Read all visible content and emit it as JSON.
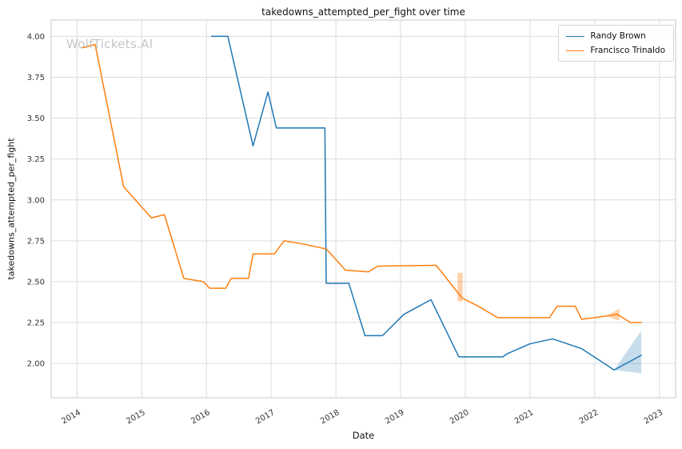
{
  "watermark": {
    "text": "WolfTickets.AI"
  },
  "chart_data": {
    "type": "line",
    "title": "takedowns_attempted_per_fight over time",
    "xlabel": "Date",
    "ylabel": "takedowns_attempted_per_fight",
    "xlim": [
      2013.6,
      2023.25
    ],
    "ylim": [
      1.79,
      4.1
    ],
    "xticks": [
      2014,
      2015,
      2016,
      2017,
      2018,
      2019,
      2020,
      2021,
      2022,
      2023
    ],
    "yticks": [
      2.0,
      2.25,
      2.5,
      2.75,
      3.0,
      3.25,
      3.5,
      3.75,
      4.0
    ],
    "grid": true,
    "grid_color": "#dcdcdc",
    "spine_color": "#c9c9c9",
    "tick_color": "#333333",
    "legend_position": "upper right",
    "series": [
      {
        "name": "Randy Brown",
        "color": "#1f77b4",
        "points": [
          [
            2016.08,
            4.0
          ],
          [
            2016.33,
            4.0
          ],
          [
            2016.72,
            3.33
          ],
          [
            2016.95,
            3.66
          ],
          [
            2017.08,
            3.44
          ],
          [
            2017.83,
            3.44
          ],
          [
            2017.85,
            2.49
          ],
          [
            2018.2,
            2.49
          ],
          [
            2018.45,
            2.17
          ],
          [
            2018.72,
            2.17
          ],
          [
            2019.05,
            2.3
          ],
          [
            2019.47,
            2.39
          ],
          [
            2019.9,
            2.04
          ],
          [
            2020.58,
            2.04
          ],
          [
            2020.65,
            2.06
          ],
          [
            2021.0,
            2.12
          ],
          [
            2021.35,
            2.15
          ],
          [
            2021.8,
            2.09
          ],
          [
            2022.3,
            1.96
          ],
          [
            2022.72,
            2.05
          ]
        ]
      },
      {
        "name": "Francisco Trinaldo",
        "color": "#ff7f0e",
        "points": [
          [
            2014.08,
            3.93
          ],
          [
            2014.28,
            3.95
          ],
          [
            2014.72,
            3.08
          ],
          [
            2015.15,
            2.89
          ],
          [
            2015.35,
            2.91
          ],
          [
            2015.65,
            2.52
          ],
          [
            2015.95,
            2.5
          ],
          [
            2016.05,
            2.46
          ],
          [
            2016.3,
            2.46
          ],
          [
            2016.38,
            2.52
          ],
          [
            2016.65,
            2.52
          ],
          [
            2016.72,
            2.67
          ],
          [
            2017.05,
            2.67
          ],
          [
            2017.2,
            2.75
          ],
          [
            2017.5,
            2.73
          ],
          [
            2017.85,
            2.7
          ],
          [
            2018.15,
            2.57
          ],
          [
            2018.5,
            2.56
          ],
          [
            2018.65,
            2.595
          ],
          [
            2019.55,
            2.6
          ],
          [
            2019.95,
            2.4
          ],
          [
            2020.2,
            2.35
          ],
          [
            2020.5,
            2.28
          ],
          [
            2021.3,
            2.28
          ],
          [
            2021.42,
            2.35
          ],
          [
            2021.7,
            2.35
          ],
          [
            2021.8,
            2.27
          ],
          [
            2022.0,
            2.28
          ],
          [
            2022.35,
            2.3
          ],
          [
            2022.55,
            2.25
          ],
          [
            2022.72,
            2.25
          ]
        ]
      }
    ],
    "bands": [
      {
        "series": "Randy Brown",
        "color": "#1f77b4",
        "opacity": 0.25,
        "points": [
          [
            2022.3,
            1.96
          ],
          [
            2022.72,
            2.2
          ],
          [
            2022.72,
            1.94
          ]
        ]
      },
      {
        "series": "Francisco Trinaldo",
        "color": "#ff7f0e",
        "opacity": 0.35,
        "points": [
          [
            2019.88,
            2.555
          ],
          [
            2019.96,
            2.555
          ],
          [
            2019.96,
            2.38
          ],
          [
            2019.88,
            2.38
          ]
        ]
      },
      {
        "series": "Francisco Trinaldo",
        "color": "#ff7f0e",
        "opacity": 0.35,
        "points": [
          [
            2022.18,
            2.29
          ],
          [
            2022.38,
            2.335
          ],
          [
            2022.38,
            2.26
          ]
        ]
      }
    ]
  }
}
